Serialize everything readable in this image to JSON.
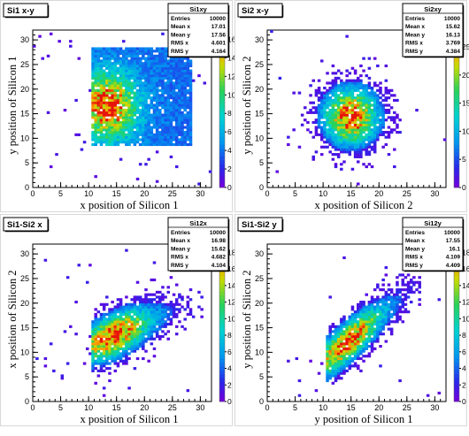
{
  "chart_data": [
    {
      "type": "heatmap",
      "title": "Si1 x-y",
      "xlabel": "x position of Silicon 1",
      "ylabel": "y position of Silicon 1",
      "xlim": [
        0,
        32
      ],
      "ylim": [
        0,
        32
      ],
      "x_ticks": [
        0,
        5,
        10,
        15,
        20,
        25,
        30
      ],
      "y_ticks": [
        0,
        5,
        10,
        15,
        20,
        25,
        30
      ],
      "z_ticks": [
        0,
        2,
        4,
        6,
        8,
        10,
        12,
        14,
        16
      ],
      "zlim": [
        0,
        17
      ],
      "stats": {
        "name": "Si1xy",
        "rows": [
          [
            "Entries",
            "10000"
          ],
          [
            "Mean x",
            "17.01"
          ],
          [
            "Mean y",
            "17.56"
          ],
          [
            "RMS x",
            "4.601"
          ],
          [
            "RMS y",
            "4.164"
          ]
        ]
      },
      "density": {
        "kind": "box",
        "cx": 13.5,
        "cy": 16.5,
        "sx": 3.5,
        "sy": 4.5,
        "xmin": 10.5,
        "xmax": 28.5,
        "ymin": 8.5,
        "ymax": 28.5
      }
    },
    {
      "type": "heatmap",
      "title": "Si2 x-y",
      "xlabel": "x position of Silicon 2",
      "ylabel": "y position of Silicon 2",
      "xlim": [
        0,
        32
      ],
      "ylim": [
        0,
        32
      ],
      "x_ticks": [
        0,
        5,
        10,
        15,
        20,
        25,
        30
      ],
      "y_ticks": [
        0,
        5,
        10,
        15,
        20,
        25,
        30
      ],
      "z_ticks": [
        0,
        5,
        10,
        15,
        20,
        25
      ],
      "zlim": [
        0,
        28
      ],
      "stats": {
        "name": "Si2xy",
        "rows": [
          [
            "Entries",
            "10000"
          ],
          [
            "Mean x",
            "15.62"
          ],
          [
            "Mean y",
            "16.13"
          ],
          [
            "RMS x",
            "3.769"
          ],
          [
            "RMS y",
            "4.384"
          ]
        ]
      },
      "density": {
        "kind": "round",
        "cx": 15.0,
        "cy": 14.5,
        "sx": 3.4,
        "sy": 4.0
      }
    },
    {
      "type": "heatmap",
      "title": "Si1-Si2 x",
      "xlabel": "x position of Silicon 1",
      "ylabel": "x position of Silicon 2",
      "xlim": [
        0,
        32
      ],
      "ylim": [
        0,
        32
      ],
      "x_ticks": [
        0,
        5,
        10,
        15,
        20,
        25,
        30
      ],
      "y_ticks": [
        0,
        5,
        10,
        15,
        20,
        25,
        30
      ],
      "z_ticks": [
        0,
        2,
        4,
        6,
        8,
        10,
        12,
        14,
        16,
        18
      ],
      "zlim": [
        0,
        19
      ],
      "stats": {
        "name": "Si12x",
        "rows": [
          [
            "Entries",
            "10000"
          ],
          [
            "Mean x",
            "16.98"
          ],
          [
            "Mean y",
            "15.62"
          ],
          [
            "RMS x",
            "4.682"
          ],
          [
            "RMS y",
            "4.104"
          ]
        ]
      },
      "density": {
        "kind": "diag",
        "x0": 10.5,
        "x1": 28.5,
        "y0": 11.5,
        "y1": 20.0,
        "spread": 3.0
      }
    },
    {
      "type": "heatmap",
      "title": "Si1-Si2 y",
      "xlabel": "y position of Silicon 1",
      "ylabel": "y position of Silicon 2",
      "xlim": [
        0,
        32
      ],
      "ylim": [
        0,
        32
      ],
      "x_ticks": [
        0,
        5,
        10,
        15,
        20,
        25,
        30
      ],
      "y_ticks": [
        0,
        5,
        10,
        15,
        20,
        25,
        30
      ],
      "z_ticks": [
        0,
        2,
        4,
        6,
        8,
        10,
        12,
        14,
        16,
        18
      ],
      "zlim": [
        0,
        19
      ],
      "stats": {
        "name": "Si12y",
        "rows": [
          [
            "Entries",
            "10000"
          ],
          [
            "Mean x",
            "17.55"
          ],
          [
            "Mean y",
            "16.1"
          ],
          [
            "RMS x",
            "4.109"
          ],
          [
            "RMS y",
            "4.409"
          ]
        ]
      },
      "density": {
        "kind": "diag",
        "x0": 10.5,
        "x1": 27.5,
        "y0": 8.5,
        "y1": 24.0,
        "spread": 2.8
      }
    }
  ]
}
